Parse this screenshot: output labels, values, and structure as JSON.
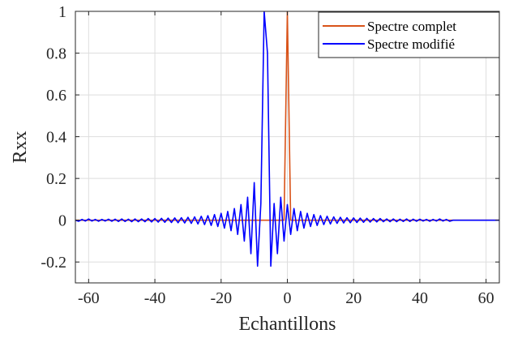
{
  "chart_data": {
    "type": "line",
    "title": "",
    "xlabel": "Echantillons",
    "ylabel": "Rxx",
    "xlim": [
      -64,
      64
    ],
    "ylim": [
      -0.3,
      1
    ],
    "xticks": [
      -60,
      -40,
      -20,
      0,
      20,
      40,
      60
    ],
    "xtick_labels": [
      "-60",
      "-40",
      "-20",
      "0",
      "20",
      "40",
      "60"
    ],
    "yticks": [
      -0.2,
      0,
      0.2,
      0.4,
      0.6,
      0.8,
      1
    ],
    "ytick_labels": [
      "-0.2",
      "0",
      "0.2",
      "0.4",
      "0.6",
      "0.8",
      "1"
    ],
    "grid": true,
    "legend_position": "top-right",
    "series": [
      {
        "name": "Spectre complet",
        "color": "#d95319",
        "x": [
          -64,
          -1,
          0,
          1,
          64
        ],
        "y": [
          0,
          0,
          1,
          0,
          0
        ]
      },
      {
        "name": "Spectre modifié",
        "color": "#0000ff",
        "x": [
          -64,
          -63,
          -62,
          -61,
          -60,
          -59,
          -58,
          -57,
          -56,
          -55,
          -54,
          -53,
          -52,
          -51,
          -50,
          -49,
          -48,
          -47,
          -46,
          -45,
          -44,
          -43,
          -42,
          -41,
          -40,
          -39,
          -38,
          -37,
          -36,
          -35,
          -34,
          -33,
          -32,
          -31,
          -30,
          -29,
          -28,
          -27,
          -26,
          -25,
          -24,
          -23,
          -22,
          -21,
          -20,
          -19,
          -18,
          -17,
          -16,
          -15,
          -14,
          -13,
          -12,
          -11,
          -10,
          -9,
          -8,
          -7,
          -6,
          -5,
          -4,
          -3,
          -2,
          -1,
          0,
          1,
          2,
          3,
          4,
          5,
          6,
          7,
          8,
          9,
          10,
          11,
          12,
          13,
          14,
          15,
          16,
          17,
          18,
          19,
          20,
          21,
          22,
          23,
          24,
          25,
          26,
          27,
          28,
          29,
          30,
          31,
          32,
          33,
          34,
          35,
          36,
          37,
          38,
          39,
          40,
          41,
          42,
          43,
          44,
          45,
          46,
          47,
          48,
          49,
          50,
          51,
          52,
          53,
          54,
          55,
          56,
          57,
          58,
          59,
          60,
          61,
          62,
          63,
          64
        ],
        "y": [
          0,
          -0.005,
          0.004,
          -0.004,
          0.006,
          -0.004,
          0.004,
          -0.005,
          0.004,
          -0.004,
          0.005,
          -0.005,
          0.005,
          -0.006,
          0.006,
          -0.006,
          0.005,
          -0.007,
          0.006,
          -0.007,
          0.006,
          -0.007,
          0.008,
          -0.008,
          0.008,
          -0.009,
          0.009,
          -0.01,
          0.01,
          -0.011,
          0.011,
          -0.012,
          0.012,
          -0.013,
          0.014,
          -0.015,
          0.016,
          -0.018,
          0.019,
          -0.021,
          0.022,
          -0.025,
          0.027,
          -0.03,
          0.033,
          -0.038,
          0.042,
          -0.05,
          0.056,
          -0.068,
          0.075,
          -0.1,
          0.11,
          -0.16,
          0.18,
          -0.22,
          0.08,
          1,
          0.8,
          -0.22,
          0.08,
          -0.16,
          0.11,
          -0.1,
          0.075,
          -0.068,
          0.056,
          -0.05,
          0.042,
          -0.038,
          0.033,
          -0.03,
          0.027,
          -0.025,
          0.022,
          -0.021,
          0.019,
          -0.018,
          0.016,
          -0.015,
          0.014,
          -0.013,
          0.012,
          -0.012,
          0.011,
          -0.011,
          0.01,
          -0.01,
          0.009,
          -0.009,
          0.008,
          -0.008,
          0.008,
          -0.007,
          0.006,
          -0.007,
          0.006,
          -0.007,
          0.005,
          -0.006,
          0.006,
          -0.006,
          0.005,
          -0.005,
          0.005,
          -0.004,
          0.004,
          -0.005,
          0.004,
          -0.004,
          0.006,
          -0.004,
          0.004,
          -0.005,
          0,
          0,
          0,
          0,
          0,
          0,
          0,
          0,
          0,
          0,
          0,
          0,
          0,
          0,
          0
        ]
      }
    ]
  }
}
